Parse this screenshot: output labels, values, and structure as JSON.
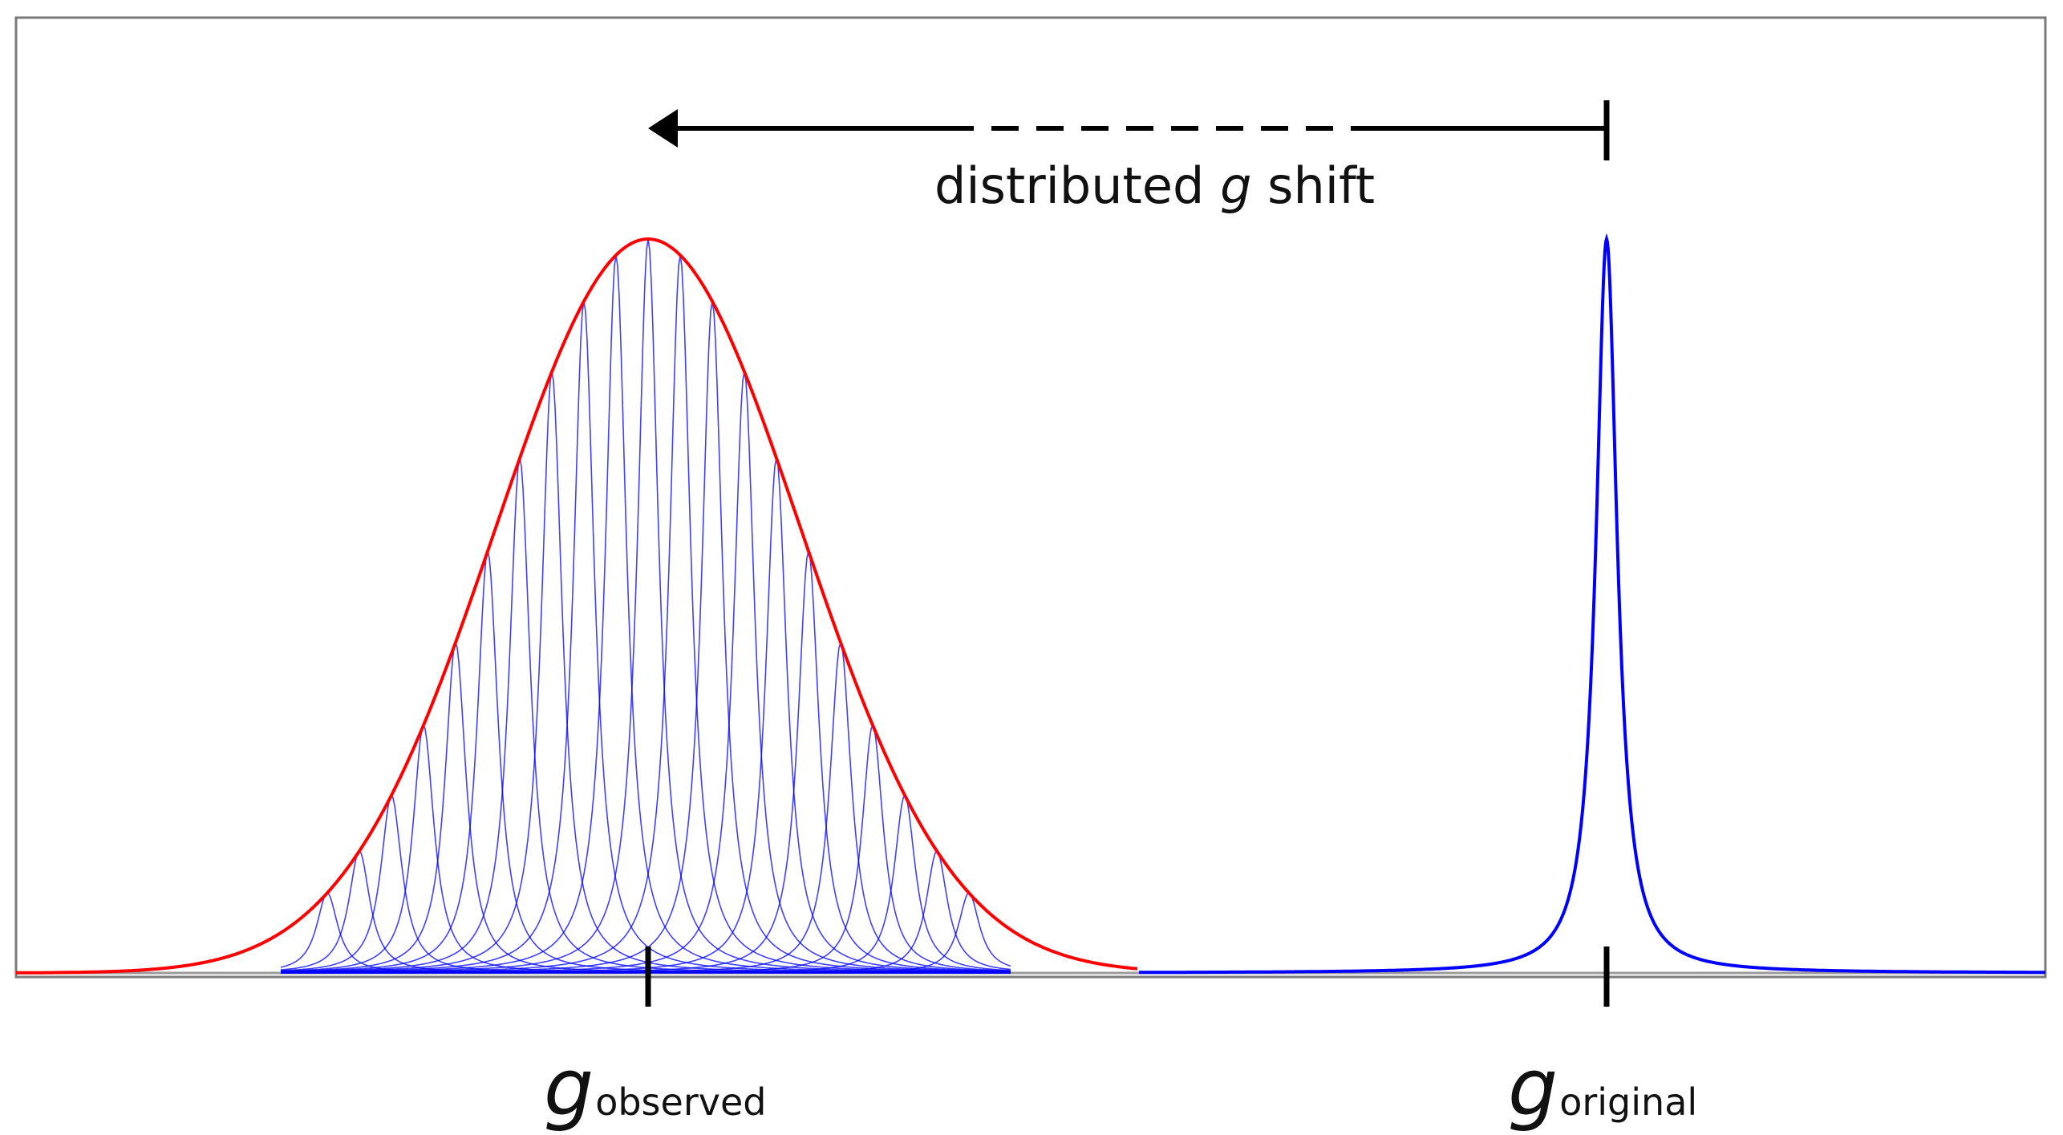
{
  "shift_label": {
    "prefix": "distributed ",
    "variable": "g",
    "suffix": " shift"
  },
  "marker_observed": {
    "symbol": "g",
    "subscript": "observed"
  },
  "marker_original": {
    "symbol": "g",
    "subscript": "original"
  },
  "colors": {
    "envelope": "#ff0000",
    "components": "#0000ff",
    "baseline": "#9a9a9a",
    "frame": "#7a7a7a",
    "arrow": "#000000"
  },
  "chart_data": {
    "type": "line",
    "description_series": [
      {
        "role": "gaussian envelope of shifted lines",
        "center": "g observed",
        "color": "red"
      },
      {
        "role": "individual Lorentzian components",
        "count": 21,
        "color": "blue"
      },
      {
        "role": "single sharp line",
        "center": "g original",
        "color": "blue"
      }
    ],
    "annotations": [
      "arrow from g original to g observed (solid-dashed-solid)"
    ]
  }
}
